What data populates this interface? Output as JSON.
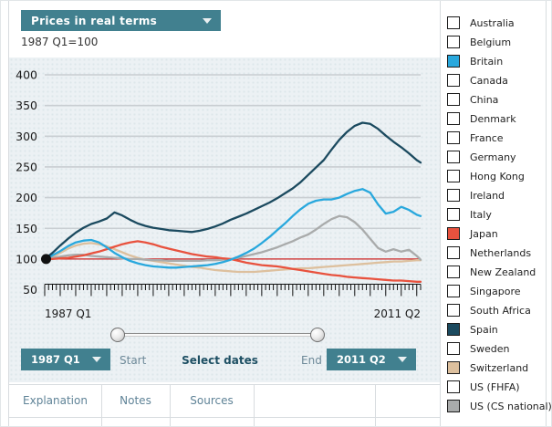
{
  "header": {
    "view_dropdown_label": "Prices in real terms",
    "index_note": "1987 Q1=100"
  },
  "controls": {
    "start_dropdown_label": "1987 Q1",
    "end_dropdown_label": "2011 Q2",
    "start_label": "Start",
    "end_label": "End",
    "select_dates_label": "Select dates"
  },
  "tabs": [
    {
      "label": "Explanation"
    },
    {
      "label": "Notes"
    },
    {
      "label": "Sources"
    }
  ],
  "colors": {
    "accent_teal": "#41808f",
    "reference_red": "#cc2222",
    "grid": "#c9ced2",
    "panel_bg": "#ecf1f4"
  },
  "countries": [
    {
      "name": "Australia",
      "checked": false,
      "color": null
    },
    {
      "name": "Belgium",
      "checked": false,
      "color": null
    },
    {
      "name": "Britain",
      "checked": true,
      "color": "#29a8dd"
    },
    {
      "name": "Canada",
      "checked": false,
      "color": null
    },
    {
      "name": "China",
      "checked": false,
      "color": null
    },
    {
      "name": "Denmark",
      "checked": false,
      "color": null
    },
    {
      "name": "France",
      "checked": false,
      "color": null
    },
    {
      "name": "Germany",
      "checked": false,
      "color": null
    },
    {
      "name": "Hong Kong",
      "checked": false,
      "color": null
    },
    {
      "name": "Ireland",
      "checked": false,
      "color": null
    },
    {
      "name": "Italy",
      "checked": false,
      "color": null
    },
    {
      "name": "Japan",
      "checked": true,
      "color": "#e8523e"
    },
    {
      "name": "Netherlands",
      "checked": false,
      "color": null
    },
    {
      "name": "New Zealand",
      "checked": false,
      "color": null
    },
    {
      "name": "Singapore",
      "checked": false,
      "color": null
    },
    {
      "name": "South Africa",
      "checked": false,
      "color": null
    },
    {
      "name": "Spain",
      "checked": true,
      "color": "#1b4a5f"
    },
    {
      "name": "Sweden",
      "checked": false,
      "color": null
    },
    {
      "name": "Switzerland",
      "checked": true,
      "color": "#ddc09e"
    },
    {
      "name": "US (FHFA)",
      "checked": false,
      "color": null
    },
    {
      "name": "US (CS national)",
      "checked": true,
      "color": "#a9abab"
    }
  ],
  "chart_data": {
    "type": "line",
    "title": "Prices in real terms",
    "subtitle": "1987 Q1=100",
    "x_start": "1987 Q1",
    "x_end": "2011 Q2",
    "x_quarters": 98,
    "ylim": [
      50,
      400
    ],
    "yticks": [
      400,
      350,
      300,
      250,
      200,
      150,
      100,
      50
    ],
    "gridlines": [
      400,
      350,
      300,
      250,
      200,
      150
    ],
    "reference_line": 100,
    "grid": true,
    "legend_position": "right-checkbox-list",
    "start_dot": {
      "x": "1987 Q1",
      "value": 100
    },
    "q_step": 2,
    "series": [
      {
        "name": "Switzerland",
        "color": "#ddc09e",
        "values": [
          100,
          104,
          110,
          117,
          122,
          125,
          126,
          124,
          121,
          116,
          111,
          106,
          102,
          99,
          97,
          95,
          93,
          91,
          89,
          87,
          86,
          84,
          82,
          81,
          80,
          79,
          79,
          79,
          80,
          81,
          82,
          83,
          84,
          85,
          85,
          86,
          87,
          88,
          89,
          90,
          91,
          92,
          93,
          94,
          95,
          96,
          96,
          97,
          98,
          98
        ]
      },
      {
        "name": "US (CS national)",
        "color": "#a9abab",
        "values": [
          100,
          102,
          104,
          106,
          107,
          107,
          105,
          104,
          103,
          102,
          101,
          100,
          100,
          99,
          98,
          98,
          97,
          97,
          97,
          97,
          97,
          98,
          98,
          99,
          100,
          102,
          105,
          108,
          111,
          115,
          119,
          124,
          129,
          135,
          140,
          148,
          157,
          165,
          170,
          168,
          160,
          148,
          133,
          118,
          112,
          116,
          112,
          115,
          105,
          99
        ]
      },
      {
        "name": "Japan",
        "color": "#e8523e",
        "values": [
          100,
          100,
          101,
          102,
          104,
          106,
          109,
          112,
          116,
          120,
          124,
          127,
          129,
          127,
          124,
          120,
          117,
          114,
          111,
          108,
          106,
          104,
          103,
          101,
          100,
          97,
          94,
          92,
          90,
          89,
          88,
          86,
          84,
          82,
          80,
          78,
          76,
          74,
          73,
          71,
          70,
          69,
          68,
          67,
          66,
          65,
          65,
          64,
          63,
          63
        ]
      },
      {
        "name": "Britain",
        "color": "#29a8dd",
        "values": [
          100,
          106,
          113,
          121,
          127,
          130,
          131,
          127,
          119,
          110,
          103,
          97,
          93,
          90,
          88,
          87,
          86,
          86,
          87,
          88,
          89,
          90,
          92,
          95,
          99,
          104,
          110,
          117,
          126,
          136,
          147,
          158,
          170,
          181,
          190,
          195,
          197,
          197,
          200,
          206,
          211,
          214,
          208,
          189,
          174,
          177,
          185,
          180,
          172,
          170
        ]
      },
      {
        "name": "Spain",
        "color": "#1b4a5f",
        "values": [
          100,
          110,
          122,
          133,
          143,
          151,
          157,
          161,
          166,
          176,
          171,
          164,
          158,
          154,
          151,
          149,
          147,
          146,
          145,
          144,
          146,
          149,
          153,
          158,
          164,
          169,
          174,
          180,
          186,
          192,
          199,
          207,
          215,
          225,
          237,
          249,
          261,
          278,
          294,
          307,
          317,
          322,
          320,
          312,
          301,
          291,
          282,
          272,
          261,
          257
        ]
      }
    ]
  }
}
